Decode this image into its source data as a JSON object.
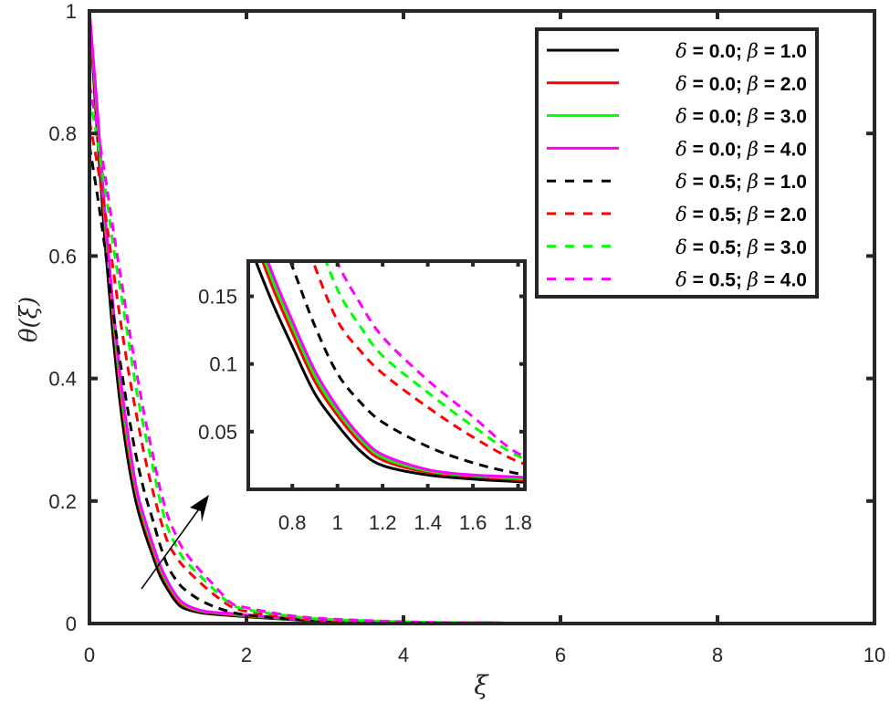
{
  "chart_data": {
    "type": "line",
    "xlabel": "ξ",
    "ylabel": "θ(ξ)",
    "xlim": [
      0,
      10
    ],
    "ylim": [
      0,
      1
    ],
    "xticks": [
      "0",
      "2",
      "4",
      "6",
      "8",
      "10"
    ],
    "yticks": [
      "0",
      "0.2",
      "0.4",
      "0.6",
      "0.8",
      "1"
    ],
    "legend_position": "top-right",
    "grid": false,
    "x": [
      0,
      0.1,
      0.2,
      0.3,
      0.4,
      0.5,
      0.6,
      0.7,
      0.8,
      0.9,
      1.0,
      1.1,
      1.2,
      1.4,
      1.6,
      1.8,
      2,
      2.5,
      3,
      4,
      5,
      6,
      8,
      10
    ],
    "series": [
      {
        "name": "δ = 0.0; β = 1.0",
        "color": "#000000",
        "dash": false,
        "values": [
          1,
          0.8,
          0.62,
          0.47,
          0.35,
          0.26,
          0.195,
          0.15,
          0.113,
          0.078,
          0.055,
          0.036,
          0.025,
          0.018,
          0.015,
          0.013,
          0.011,
          0.007,
          0.004,
          0.002,
          0.001,
          0.0005,
          0,
          0
        ]
      },
      {
        "name": "δ = 0.0; β = 2.0",
        "color": "#ff0000",
        "dash": false,
        "values": [
          1,
          0.82,
          0.645,
          0.5,
          0.375,
          0.28,
          0.21,
          0.162,
          0.123,
          0.087,
          0.062,
          0.042,
          0.029,
          0.02,
          0.017,
          0.0145,
          0.012,
          0.008,
          0.005,
          0.002,
          0.001,
          0.0005,
          0,
          0
        ]
      },
      {
        "name": "δ = 0.0; β = 3.0",
        "color": "#00ff00",
        "dash": false,
        "values": [
          1,
          0.83,
          0.655,
          0.51,
          0.385,
          0.29,
          0.215,
          0.167,
          0.128,
          0.091,
          0.065,
          0.045,
          0.031,
          0.021,
          0.0175,
          0.0155,
          0.013,
          0.008,
          0.005,
          0.002,
          0.001,
          0.0005,
          0,
          0
        ]
      },
      {
        "name": "δ = 0.0; β = 4.0",
        "color": "#ff00ff",
        "dash": false,
        "values": [
          1,
          0.84,
          0.665,
          0.52,
          0.395,
          0.3,
          0.22,
          0.172,
          0.132,
          0.095,
          0.068,
          0.047,
          0.033,
          0.022,
          0.018,
          0.0165,
          0.014,
          0.009,
          0.005,
          0.002,
          0.001,
          0.0005,
          0,
          0
        ]
      },
      {
        "name": "δ = 0.5; β = 1.0",
        "color": "#000000",
        "dash": true,
        "values": [
          0.78,
          0.7,
          0.61,
          0.51,
          0.42,
          0.34,
          0.27,
          0.215,
          0.172,
          0.128,
          0.093,
          0.072,
          0.057,
          0.039,
          0.027,
          0.019,
          0.014,
          0.008,
          0.005,
          0.002,
          0.001,
          0.0004,
          0,
          0
        ]
      },
      {
        "name": "δ = 0.5; β = 2.0",
        "color": "#ff0000",
        "dash": true,
        "values": [
          0.82,
          0.75,
          0.67,
          0.58,
          0.49,
          0.41,
          0.34,
          0.275,
          0.22,
          0.172,
          0.132,
          0.11,
          0.093,
          0.068,
          0.046,
          0.028,
          0.02,
          0.011,
          0.006,
          0.002,
          0.001,
          0.0005,
          0,
          0
        ]
      },
      {
        "name": "δ = 0.5; β = 3.0",
        "color": "#00ff00",
        "dash": true,
        "values": [
          0.86,
          0.79,
          0.71,
          0.62,
          0.54,
          0.46,
          0.38,
          0.315,
          0.26,
          0.2,
          0.155,
          0.128,
          0.106,
          0.079,
          0.054,
          0.032,
          0.023,
          0.013,
          0.007,
          0.003,
          0.001,
          0.0005,
          0,
          0
        ]
      },
      {
        "name": "δ = 0.5; β = 4.0",
        "color": "#ff00ff",
        "dash": true,
        "values": [
          0.88,
          0.81,
          0.73,
          0.645,
          0.565,
          0.485,
          0.41,
          0.34,
          0.28,
          0.22,
          0.175,
          0.145,
          0.12,
          0.088,
          0.061,
          0.034,
          0.026,
          0.014,
          0.008,
          0.003,
          0.001,
          0.0005,
          0,
          0
        ]
      }
    ],
    "inset": {
      "xlim": [
        0.605,
        1.83
      ],
      "ylim": [
        0.0074,
        0.176
      ],
      "xticks": [
        "0.8",
        "1",
        "1.2",
        "1.4",
        "1.6",
        "1.8"
      ],
      "yticks": [
        "0.05",
        "0.1",
        "0.15"
      ]
    },
    "annotation": "arrow indicating increasing β"
  }
}
